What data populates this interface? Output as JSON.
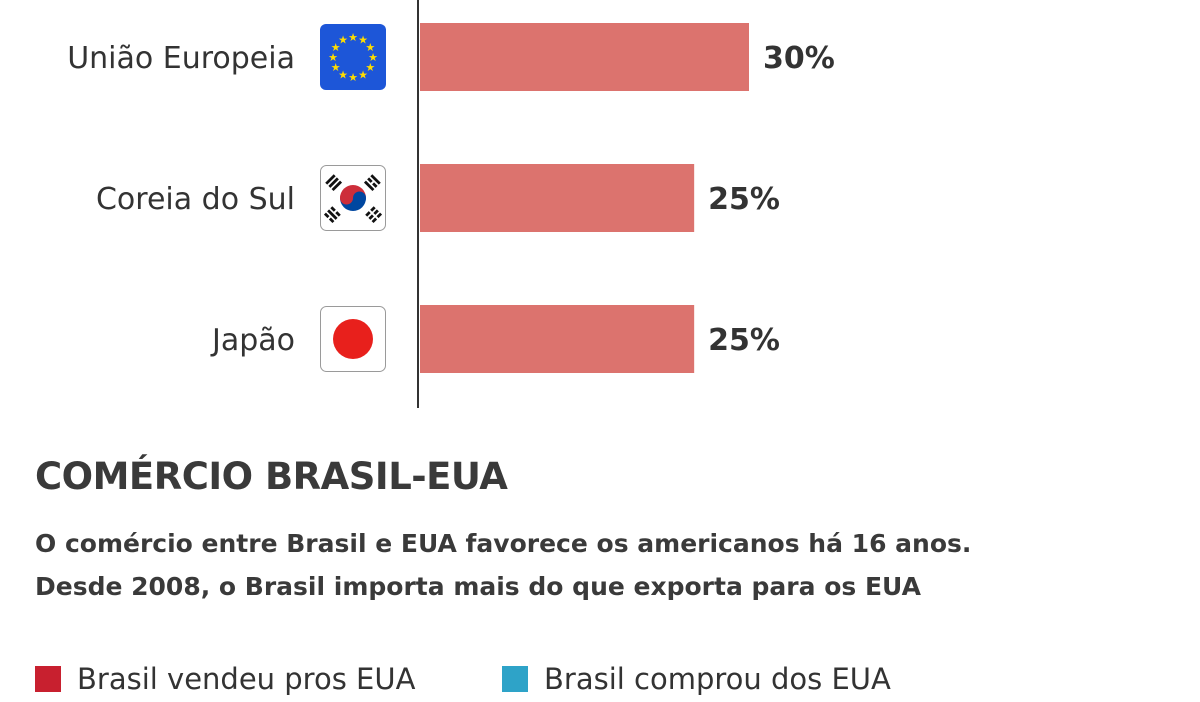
{
  "chart_data": {
    "type": "bar",
    "orientation": "horizontal",
    "categories": [
      "União Europeia",
      "Coreia do Sul",
      "Japão"
    ],
    "values": [
      30,
      25,
      25
    ],
    "value_labels": [
      "30%",
      "25%",
      "25%"
    ],
    "flag_icons": [
      "eu-flag-icon",
      "south-korea-flag-icon",
      "japan-flag-icon"
    ],
    "bar_color": "#dc736e",
    "grid": false
  },
  "section": {
    "title": "COMÉRCIO BRASIL-EUA",
    "description_line1": "O comércio entre Brasil e EUA favorece os americanos há 16 anos.",
    "description_line2": "Desde 2008, o Brasil importa mais do que exporta para os EUA"
  },
  "legend": {
    "items": [
      {
        "label": "Brasil vendeu pros EUA",
        "color": "#c8202f"
      },
      {
        "label": "Brasil comprou dos EUA",
        "color": "#2ea3c8"
      }
    ]
  }
}
